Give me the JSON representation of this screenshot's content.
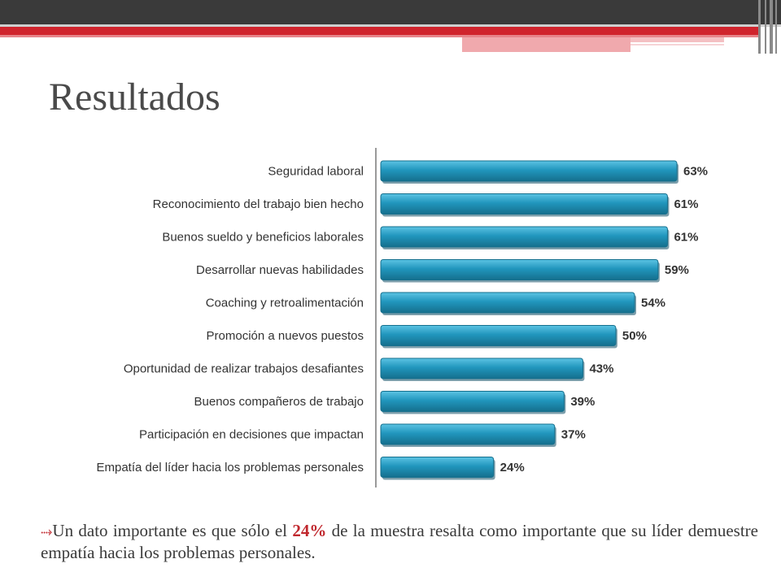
{
  "slide": {
    "title": "Resultados",
    "note": {
      "bullet_icon": "bullet-arrow-icon",
      "before": "Un dato importante es que sólo el ",
      "highlight": "24%",
      "after": " de la muestra resalta como importante que su líder demuestre empatía hacia los problemas personales."
    }
  },
  "colors": {
    "bar": "#2196bd",
    "bar_dark": "#156f8d",
    "accent_red": "#d0242d"
  },
  "chart_data": {
    "type": "bar",
    "orientation": "horizontal",
    "categories": [
      "Seguridad laboral",
      "Reconocimiento del trabajo bien hecho",
      "Buenos sueldo  y beneficios laborales",
      "Desarrollar nuevas habilidades",
      "Coaching y retroalimentación",
      "Promoción a nuevos puestos",
      "Oportunidad de realizar trabajos desafiantes",
      "Buenos compañeros de trabajo",
      "Participación en decisiones que impactan",
      "Empatía del líder hacia los problemas personales"
    ],
    "values": [
      63,
      61,
      61,
      59,
      54,
      50,
      43,
      39,
      37,
      24
    ],
    "value_labels": [
      "63%",
      "61%",
      "61%",
      "59%",
      "54%",
      "50%",
      "43%",
      "39%",
      "37%",
      "24%"
    ],
    "unit": "%",
    "xlim": [
      0,
      63
    ],
    "grid": false,
    "legend": "none"
  }
}
